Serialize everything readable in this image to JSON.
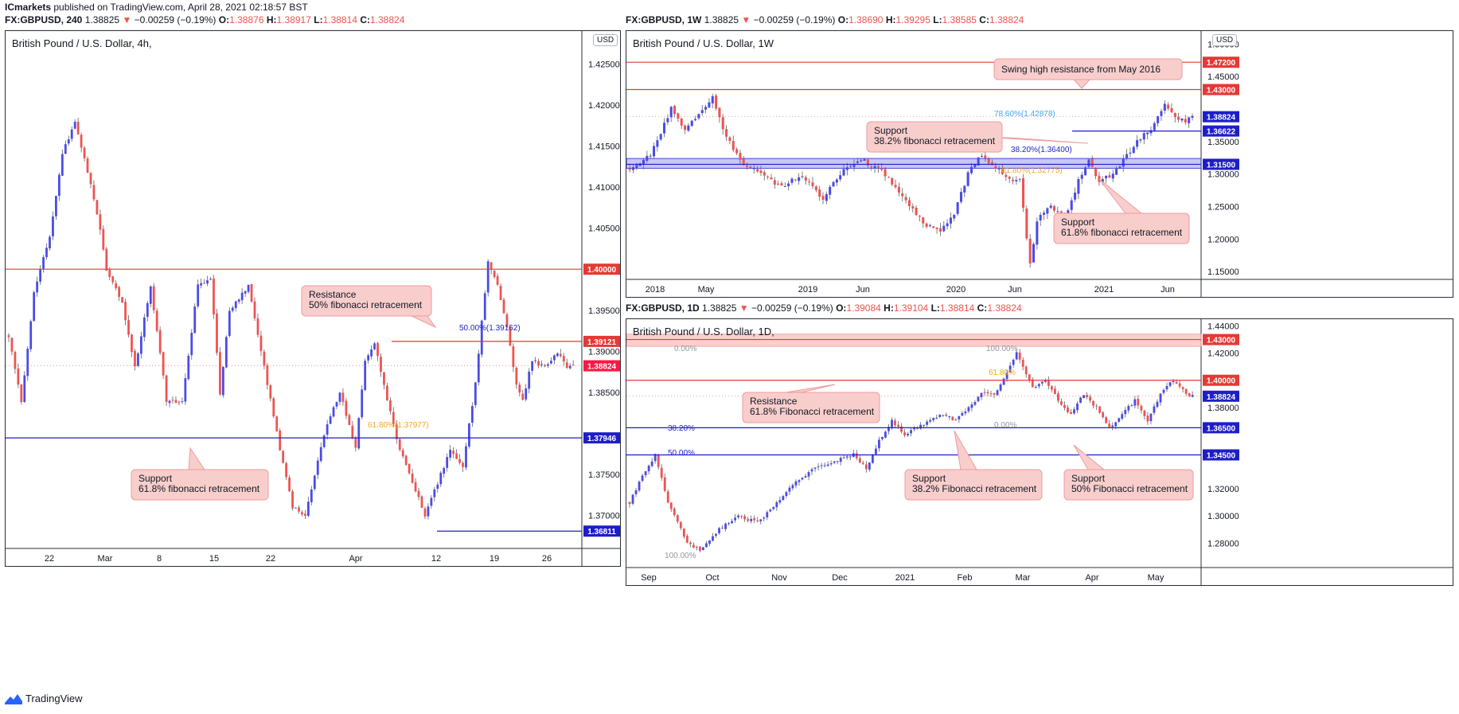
{
  "header": {
    "publisher": "ICmarkets",
    "published_text": "published on TradingView.com, April 28, 2021 02:18:57 BST"
  },
  "footer": {
    "brand": "TradingView"
  },
  "panels": [
    {
      "id": "h4",
      "info": {
        "symbol": "FX:GBPUSD, 240",
        "last": "1.38825",
        "change": "−0.00259 (−0.19%)",
        "o": "1.38876",
        "h": "1.38917",
        "l": "1.38814",
        "c": "1.38824"
      },
      "title": "British Pound / U.S. Dollar, 4h,",
      "currency": "USD"
    },
    {
      "id": "w1",
      "info": {
        "symbol": "FX:GBPUSD, 1W",
        "last": "1.38825",
        "change": "−0.00259 (−0.19%)",
        "o": "1.38690",
        "h": "1.39295",
        "l": "1.38585",
        "c": "1.38824"
      },
      "title": "British Pound / U.S. Dollar, 1W",
      "currency": "USD"
    },
    {
      "id": "d1",
      "info": {
        "symbol": "FX:GBPUSD, 1D",
        "last": "1.38825",
        "change": "−0.00259 (−0.19%)",
        "o": "1.39084",
        "h": "1.39104",
        "l": "1.38814",
        "c": "1.38824"
      },
      "title": "British Pound / U.S. Dollar, 1D,"
    }
  ],
  "chart_data": [
    {
      "type": "candlestick",
      "panel": "h4",
      "title": "British Pound / U.S. Dollar, 4h,",
      "ylim": [
        1.366,
        1.429
      ],
      "y_ticks": [
        "1.42500",
        "1.42000",
        "1.41500",
        "1.41000",
        "1.40500",
        "1.40000",
        "1.39500",
        "1.39000",
        "1.38500",
        "1.38000",
        "1.37500",
        "1.37000"
      ],
      "x_ticks": [
        "22",
        "Mar",
        "8",
        "15",
        "22",
        "Apr",
        "12",
        "19",
        "26"
      ],
      "path": [
        [
          0,
          1.392
        ],
        [
          4,
          1.384
        ],
        [
          8,
          1.397
        ],
        [
          13,
          1.404
        ],
        [
          17,
          1.414
        ],
        [
          21,
          1.418
        ],
        [
          25,
          1.412
        ],
        [
          29,
          1.405
        ],
        [
          31,
          1.4
        ],
        [
          36,
          1.396
        ],
        [
          40,
          1.388
        ],
        [
          45,
          1.398
        ],
        [
          50,
          1.384
        ],
        [
          55,
          1.384
        ],
        [
          60,
          1.398
        ],
        [
          64,
          1.399
        ],
        [
          67,
          1.385
        ],
        [
          70,
          1.395
        ],
        [
          76,
          1.398
        ],
        [
          81,
          1.388
        ],
        [
          86,
          1.378
        ],
        [
          90,
          1.371
        ],
        [
          94,
          1.37
        ],
        [
          100,
          1.38
        ],
        [
          105,
          1.385
        ],
        [
          110,
          1.378
        ],
        [
          113,
          1.389
        ],
        [
          116,
          1.391
        ],
        [
          120,
          1.384
        ],
        [
          124,
          1.378
        ],
        [
          128,
          1.374
        ],
        [
          132,
          1.37
        ],
        [
          136,
          1.374
        ],
        [
          140,
          1.378
        ],
        [
          144,
          1.376
        ],
        [
          148,
          1.386
        ],
        [
          152,
          1.401
        ],
        [
          155,
          1.398
        ],
        [
          158,
          1.393
        ],
        [
          161,
          1.386
        ],
        [
          163,
          1.384
        ],
        [
          166,
          1.389
        ],
        [
          170,
          1.388
        ],
        [
          174,
          1.39
        ],
        [
          177,
          1.388
        ],
        [
          179,
          1.3883
        ]
      ],
      "horizontal_levels": [
        {
          "value": "1.40000",
          "color": "#e53935"
        },
        {
          "value": "1.39121",
          "color": "#e53935"
        },
        {
          "value": "1.37946",
          "color": "#1e1ec8"
        },
        {
          "value": "1.36811",
          "color": "#1e1ec8"
        }
      ],
      "current_price": "1.38824",
      "fib_labels": [
        "50.00%(1.39162)",
        "61.80%(1.37977)"
      ],
      "annotations": [
        {
          "lines": [
            "Resistance",
            "50% fibonacci retracement"
          ]
        },
        {
          "lines": [
            "Support",
            "61.8% fibonacci retracement"
          ]
        }
      ]
    },
    {
      "type": "candlestick",
      "panel": "w1",
      "title": "British Pound / U.S. Dollar, 1W",
      "ylim": [
        1.138,
        1.52
      ],
      "y_ticks": [
        "1.50000",
        "1.45000",
        "1.40000",
        "1.35000",
        "1.30000",
        "1.25000",
        "1.20000",
        "1.15000"
      ],
      "x_ticks": [
        "2018",
        "May",
        "2019",
        "Jun",
        "2020",
        "Jun",
        "2021",
        "Jun"
      ],
      "path": [
        [
          0,
          1.31
        ],
        [
          6,
          1.33
        ],
        [
          12,
          1.4
        ],
        [
          16,
          1.37
        ],
        [
          20,
          1.39
        ],
        [
          24,
          1.42
        ],
        [
          27,
          1.37
        ],
        [
          32,
          1.32
        ],
        [
          38,
          1.3
        ],
        [
          44,
          1.28
        ],
        [
          50,
          1.3
        ],
        [
          56,
          1.26
        ],
        [
          62,
          1.31
        ],
        [
          68,
          1.32
        ],
        [
          74,
          1.3
        ],
        [
          80,
          1.26
        ],
        [
          86,
          1.22
        ],
        [
          90,
          1.21
        ],
        [
          94,
          1.24
        ],
        [
          98,
          1.3
        ],
        [
          102,
          1.33
        ],
        [
          106,
          1.31
        ],
        [
          110,
          1.29
        ],
        [
          113,
          1.29
        ],
        [
          116,
          1.16
        ],
        [
          118,
          1.23
        ],
        [
          122,
          1.25
        ],
        [
          126,
          1.23
        ],
        [
          130,
          1.29
        ],
        [
          133,
          1.32
        ],
        [
          136,
          1.29
        ],
        [
          140,
          1.3
        ],
        [
          143,
          1.32
        ],
        [
          147,
          1.35
        ],
        [
          151,
          1.37
        ],
        [
          155,
          1.41
        ],
        [
          158,
          1.39
        ],
        [
          161,
          1.38
        ],
        [
          163,
          1.3882
        ]
      ],
      "horizontal_levels": [
        {
          "value": "1.47200",
          "color": "#e53935"
        },
        {
          "value": "1.43000",
          "color": "#e53935"
        },
        {
          "value": "1.36622",
          "color": "#1e1ec8"
        },
        {
          "value": "1.31500",
          "color": "#1e1ec8"
        }
      ],
      "zone": {
        "from": 1.309,
        "to": 1.324
      },
      "current_price": "1.38824",
      "fib_labels": [
        "78.60%(1.42878)",
        "38.20%(1.36400)",
        "61.80%(1.32775)"
      ],
      "annotations": [
        {
          "lines": [
            "Swing high resistance from May 2016"
          ]
        },
        {
          "lines": [
            "Support",
            "38.2% fibonacci retracement"
          ]
        },
        {
          "lines": [
            "Support",
            "61.8% fibonacci retracement"
          ]
        }
      ]
    },
    {
      "type": "candlestick",
      "panel": "d1",
      "title": "British Pound / U.S. Dollar, 1D,",
      "ylim": [
        1.262,
        1.445
      ],
      "y_ticks": [
        "1.44000",
        "1.42000",
        "1.40000",
        "1.38000",
        "1.36000",
        "1.34000",
        "1.32000",
        "1.30000",
        "1.28000"
      ],
      "x_ticks": [
        "Sep",
        "Oct",
        "Nov",
        "Dec",
        "2021",
        "Feb",
        "Mar",
        "Apr",
        "May"
      ],
      "path": [
        [
          0,
          1.31
        ],
        [
          4,
          1.33
        ],
        [
          8,
          1.345
        ],
        [
          12,
          1.31
        ],
        [
          18,
          1.28
        ],
        [
          22,
          1.275
        ],
        [
          28,
          1.29
        ],
        [
          34,
          1.3
        ],
        [
          40,
          1.295
        ],
        [
          46,
          1.31
        ],
        [
          52,
          1.325
        ],
        [
          58,
          1.335
        ],
        [
          64,
          1.34
        ],
        [
          70,
          1.345
        ],
        [
          74,
          1.335
        ],
        [
          78,
          1.355
        ],
        [
          82,
          1.37
        ],
        [
          86,
          1.36
        ],
        [
          90,
          1.365
        ],
        [
          94,
          1.37
        ],
        [
          98,
          1.375
        ],
        [
          102,
          1.37
        ],
        [
          106,
          1.38
        ],
        [
          110,
          1.39
        ],
        [
          114,
          1.39
        ],
        [
          118,
          1.405
        ],
        [
          121,
          1.42
        ],
        [
          123,
          1.41
        ],
        [
          126,
          1.395
        ],
        [
          130,
          1.4
        ],
        [
          134,
          1.385
        ],
        [
          138,
          1.375
        ],
        [
          142,
          1.39
        ],
        [
          146,
          1.38
        ],
        [
          150,
          1.365
        ],
        [
          154,
          1.375
        ],
        [
          158,
          1.385
        ],
        [
          162,
          1.37
        ],
        [
          166,
          1.39
        ],
        [
          170,
          1.4
        ],
        [
          174,
          1.39
        ],
        [
          176,
          1.3882
        ]
      ],
      "horizontal_levels": [
        {
          "value": "1.43000",
          "color": "#e53935"
        },
        {
          "value": "1.40000",
          "color": "#e53935"
        },
        {
          "value": "1.36500",
          "color": "#1e1ec8"
        },
        {
          "value": "1.34500",
          "color": "#1e1ec8"
        }
      ],
      "zone": {
        "from": 1.425,
        "to": 1.434
      },
      "current_price": "1.38824",
      "fib_labels": [
        "0.00%",
        "100.00%",
        "61.80%",
        "38.20%",
        "0.00%",
        "50.00%",
        "100.00%"
      ],
      "annotations": [
        {
          "lines": [
            "Resistance",
            "61.8% Fibonacci retracement"
          ]
        },
        {
          "lines": [
            "Support",
            "38.2% Fibonacci retracement"
          ]
        },
        {
          "lines": [
            "Support",
            "50% Fibonacci retracement"
          ]
        }
      ]
    }
  ]
}
